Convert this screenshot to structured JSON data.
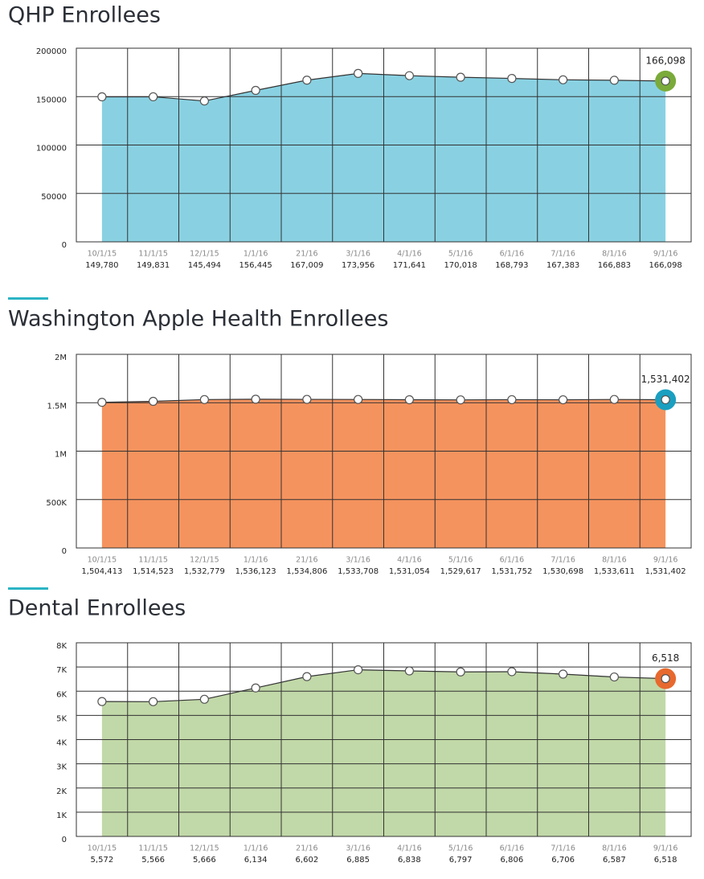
{
  "chart_data": [
    {
      "type": "area",
      "title": "QHP Enrollees",
      "categories": [
        "10/1/15",
        "11/1/15",
        "12/1/15",
        "1/1/16",
        "21/16",
        "3/1/16",
        "4/1/16",
        "5/1/16",
        "6/1/16",
        "7/1/16",
        "8/1/16",
        "9/1/16"
      ],
      "values": [
        149780,
        149831,
        145494,
        156445,
        167009,
        173956,
        171641,
        170018,
        168793,
        167383,
        166883,
        166098
      ],
      "value_labels": [
        "149,780",
        "149,831",
        "145,494",
        "156,445",
        "167,009",
        "173,956",
        "171,641",
        "170,018",
        "168,793",
        "167,383",
        "166,883",
        "166,098"
      ],
      "color": "#89d1e2",
      "highlight_color": "#7aab3a",
      "ylim": [
        0,
        200000
      ],
      "yticks": [
        0,
        50000,
        100000,
        150000,
        200000
      ],
      "grid": true
    },
    {
      "type": "area",
      "title": "Washington Apple Health Enrollees",
      "categories": [
        "10/1/15",
        "11/1/15",
        "12/1/15",
        "1/1/16",
        "21/16",
        "3/1/16",
        "4/1/16",
        "5/1/16",
        "6/1/16",
        "7/1/16",
        "8/1/16",
        "9/1/16"
      ],
      "values": [
        1504413,
        1514523,
        1532779,
        1536123,
        1534806,
        1533708,
        1531054,
        1529617,
        1531752,
        1530698,
        1533611,
        1531402
      ],
      "value_labels": [
        "1,504,413",
        "1,514,523",
        "1,532,779",
        "1,536,123",
        "1,534,806",
        "1,533,708",
        "1,531,054",
        "1,529,617",
        "1,531,752",
        "1,530,698",
        "1,533,611",
        "1,531,402"
      ],
      "color": "#f5935e",
      "highlight_color": "#1a9fc0",
      "ylim": [
        0,
        2000000
      ],
      "yticks": [
        0,
        {
          "value": 500000,
          "label": "500K"
        },
        {
          "value": 1000000,
          "label": "1M"
        },
        {
          "value": 1500000,
          "label": "1.5M"
        },
        {
          "value": 2000000,
          "label": "2M"
        }
      ],
      "grid": true
    },
    {
      "type": "area",
      "title": "Dental Enrollees",
      "categories": [
        "10/1/15",
        "11/1/15",
        "12/1/15",
        "1/1/16",
        "21/16",
        "3/1/16",
        "4/1/16",
        "5/1/16",
        "6/1/16",
        "7/1/16",
        "8/1/16",
        "9/1/16"
      ],
      "values": [
        5572,
        5566,
        5666,
        6134,
        6602,
        6885,
        6838,
        6797,
        6806,
        6706,
        6587,
        6518
      ],
      "value_labels": [
        "5,572",
        "5,566",
        "5,666",
        "6,134",
        "6,602",
        "6,885",
        "6,838",
        "6,797",
        "6,806",
        "6,706",
        "6,587",
        "6,518"
      ],
      "color": "#c1d8a8",
      "highlight_color": "#e8692e",
      "ylim": [
        0,
        8000
      ],
      "yticks": [
        0,
        {
          "value": 1000,
          "label": "1K"
        },
        {
          "value": 2000,
          "label": "2K"
        },
        {
          "value": 3000,
          "label": "3K"
        },
        {
          "value": 4000,
          "label": "4K"
        },
        {
          "value": 5000,
          "label": "5K"
        },
        {
          "value": 6000,
          "label": "6K"
        },
        {
          "value": 7000,
          "label": "7K"
        },
        {
          "value": 8000,
          "label": "8K"
        }
      ],
      "grid": true
    }
  ]
}
